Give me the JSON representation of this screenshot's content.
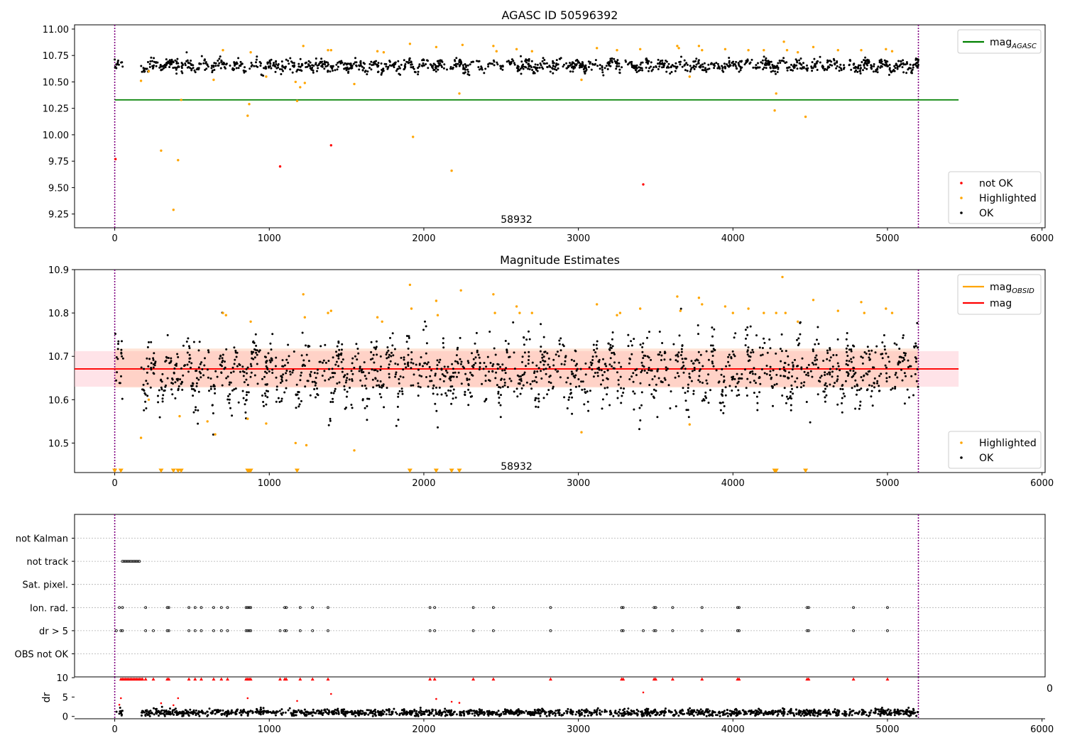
{
  "chart_data": [
    {
      "type": "scatter",
      "title": "AGASC ID 50596392",
      "xlabel": "",
      "ylabel": "",
      "xlim": [
        -260,
        6020
      ],
      "ylim": [
        9.12,
        11.04
      ],
      "xticks": [
        0,
        1000,
        2000,
        3000,
        4000,
        5000,
        6000
      ],
      "xtick_labels": [
        "0",
        "1000",
        "2000",
        "3000",
        "4000",
        "5000",
        "6000"
      ],
      "yticks": [
        9.25,
        9.5,
        9.75,
        10.0,
        10.25,
        10.5,
        10.75,
        11.0
      ],
      "ytick_labels": [
        "9.25",
        "9.50",
        "9.75",
        "10.00",
        "10.25",
        "10.50",
        "10.75",
        "11.00"
      ],
      "vlines": [
        0,
        5200
      ],
      "vline_color": "#800080",
      "annotation": {
        "text": "58932",
        "x": 2600,
        "y": 9.2
      },
      "hlines": [
        {
          "name": "mag_AGASC",
          "label_main": "mag",
          "label_sub": "AGASC",
          "y": 10.33,
          "x_range": [
            0,
            5460
          ],
          "color": "#008000"
        }
      ],
      "legend_lines": [
        {
          "label_main": "mag",
          "label_sub": "AGASC",
          "color": "#008000"
        }
      ],
      "legend_scatter": [
        {
          "label": "not OK",
          "color": "#ff0000"
        },
        {
          "label": "Highlighted",
          "color": "#ffa500"
        },
        {
          "label": "OK",
          "color": "#000000"
        }
      ],
      "series": [
        {
          "name": "OK",
          "color": "#000000",
          "generator": {
            "x_ranges": [
              [
                0,
                55
              ],
              [
                170,
                5200
              ]
            ],
            "count": 1300,
            "base": 10.655,
            "wave_amp": 0.025,
            "wave_period": 110,
            "noise": 0.028,
            "seed": 11
          },
          "x": [],
          "y": []
        },
        {
          "name": "Highlighted",
          "color": "#ffa500",
          "x": [
            170,
            220,
            300,
            380,
            410,
            430,
            640,
            700,
            860,
            870,
            880,
            980,
            1170,
            1180,
            1200,
            1220,
            1230,
            1380,
            1400,
            1550,
            1700,
            1740,
            1910,
            1930,
            2080,
            2180,
            2230,
            2250,
            2450,
            2470,
            2600,
            2700,
            3020,
            3120,
            3250,
            3400,
            3640,
            3650,
            3720,
            3780,
            3800,
            3950,
            4100,
            4200,
            4270,
            4280,
            4330,
            4350,
            4420,
            4470,
            4520,
            4680,
            4830,
            4990,
            5030
          ],
          "y": [
            10.51,
            10.6,
            9.85,
            9.29,
            9.76,
            10.33,
            10.52,
            10.8,
            10.18,
            10.29,
            10.78,
            10.55,
            10.5,
            10.32,
            10.45,
            10.84,
            10.49,
            10.8,
            10.8,
            10.48,
            10.79,
            10.78,
            10.86,
            9.98,
            10.83,
            9.66,
            10.39,
            10.85,
            10.84,
            10.79,
            10.81,
            10.79,
            10.52,
            10.82,
            10.8,
            10.81,
            10.84,
            10.82,
            10.55,
            10.84,
            10.8,
            10.81,
            10.8,
            10.8,
            10.23,
            10.39,
            10.88,
            10.8,
            10.78,
            10.17,
            10.83,
            10.8,
            10.8,
            10.81,
            10.79
          ]
        },
        {
          "name": "not OK",
          "color": "#ff0000",
          "x": [
            5,
            1070,
            1400,
            3420
          ],
          "y": [
            9.77,
            9.7,
            9.9,
            9.53
          ]
        }
      ]
    },
    {
      "type": "scatter",
      "title": "Magnitude Estimates",
      "xlabel": "",
      "ylabel": "",
      "xlim": [
        -260,
        6020
      ],
      "ylim": [
        10.432,
        10.9
      ],
      "xticks": [
        0,
        1000,
        2000,
        3000,
        4000,
        5000,
        6000
      ],
      "xtick_labels": [
        "0",
        "1000",
        "2000",
        "3000",
        "4000",
        "5000",
        "6000"
      ],
      "yticks": [
        10.5,
        10.6,
        10.7,
        10.8,
        10.9
      ],
      "ytick_labels": [
        "10.5",
        "10.6",
        "10.7",
        "10.8",
        "10.9"
      ],
      "vlines": [
        0,
        5200
      ],
      "vline_color": "#800080",
      "annotation": {
        "text": "58932",
        "x": 2600,
        "y": 10.447
      },
      "bands": [
        {
          "name": "mag band",
          "y_range": [
            10.63,
            10.712
          ],
          "x_range": [
            -260,
            5460
          ],
          "color": "#ffc0cb",
          "opacity": 0.45
        },
        {
          "name": "mag_OBSID band",
          "y_range": [
            10.628,
            10.718
          ],
          "x_range": [
            0,
            5200
          ],
          "color": "#ffb38a",
          "opacity": 0.35
        }
      ],
      "hlines": [
        {
          "name": "mag",
          "label_main": "mag",
          "label_sub": "",
          "y": 10.671,
          "x_range": [
            -260,
            5460
          ],
          "color": "#ff0000"
        }
      ],
      "legend_lines": [
        {
          "label_main": "mag",
          "label_sub": "OBSID",
          "color": "#ffa500"
        },
        {
          "label_main": "mag",
          "label_sub": "",
          "color": "#ff0000"
        }
      ],
      "legend_scatter": [
        {
          "label": "Highlighted",
          "color": "#ffa500"
        },
        {
          "label": "OK",
          "color": "#000000"
        }
      ],
      "series": [
        {
          "name": "OK",
          "color": "#000000",
          "generator": {
            "x_ranges": [
              [
                0,
                55
              ],
              [
                170,
                5200
              ]
            ],
            "count": 1600,
            "base": 10.664,
            "wave_amp": 0.035,
            "wave_period": 110,
            "noise": 0.035,
            "seed": 23
          },
          "x": [],
          "y": []
        },
        {
          "name": "Highlighted",
          "color": "#ffa500",
          "x": [
            170,
            220,
            420,
            600,
            650,
            700,
            720,
            860,
            880,
            980,
            1170,
            1220,
            1230,
            1240,
            1380,
            1400,
            1550,
            1700,
            1730,
            1910,
            1920,
            2080,
            2090,
            2240,
            2450,
            2460,
            2600,
            2620,
            2700,
            3020,
            3120,
            3250,
            3270,
            3400,
            3640,
            3660,
            3720,
            3780,
            3800,
            3950,
            4000,
            4100,
            4200,
            4280,
            4320,
            4340,
            4420,
            4520,
            4680,
            4830,
            4850,
            4990,
            5030
          ],
          "y": [
            10.512,
            10.6,
            10.562,
            10.55,
            10.52,
            10.8,
            10.795,
            10.556,
            10.78,
            10.545,
            10.5,
            10.843,
            10.79,
            10.495,
            10.8,
            10.805,
            10.483,
            10.79,
            10.78,
            10.865,
            10.81,
            10.828,
            10.795,
            10.852,
            10.843,
            10.8,
            10.815,
            10.8,
            10.8,
            10.525,
            10.82,
            10.795,
            10.8,
            10.81,
            10.838,
            10.805,
            10.543,
            10.835,
            10.82,
            10.815,
            10.8,
            10.81,
            10.8,
            10.8,
            10.883,
            10.8,
            10.78,
            10.83,
            10.805,
            10.825,
            10.8,
            10.81,
            10.8
          ]
        },
        {
          "name": "Highlighted (out of range)",
          "color": "#ffa500",
          "marker": "triangle-down",
          "x": [
            0,
            40,
            300,
            380,
            410,
            430,
            860,
            870,
            880,
            1180,
            1910,
            2080,
            2180,
            2230,
            4270,
            4280,
            4470
          ],
          "y": [
            10.436,
            10.436,
            10.436,
            10.436,
            10.436,
            10.436,
            10.436,
            10.436,
            10.436,
            10.436,
            10.436,
            10.436,
            10.436,
            10.436,
            10.436,
            10.436,
            10.436
          ]
        }
      ]
    },
    {
      "type": "scatter",
      "title": "",
      "xlim": [
        -260,
        6020
      ],
      "xticks": [
        0,
        1000,
        2000,
        3000,
        4000,
        5000,
        6000
      ],
      "xtick_labels": [
        "0",
        "1000",
        "2000",
        "3000",
        "4000",
        "5000",
        "6000"
      ],
      "vlines": [
        0,
        5200
      ],
      "vline_color": "#800080",
      "flags": {
        "categories": [
          "not Kalman",
          "not track",
          "Sat. pixel.",
          "Ion. rad.",
          "dr > 5",
          "OBS not OK"
        ],
        "points": {
          "not track": [
            50,
            60,
            70,
            80,
            90,
            100,
            110,
            120,
            130,
            140,
            150,
            160
          ],
          "Ion. rad.": [
            30,
            50,
            200,
            340,
            350,
            480,
            520,
            560,
            640,
            690,
            730,
            850,
            860,
            870,
            880,
            1100,
            1110,
            1200,
            1280,
            1380,
            2040,
            2070,
            2320,
            2450,
            2820,
            3280,
            3290,
            3490,
            3500,
            3610,
            3800,
            4030,
            4040,
            4480,
            4490,
            4780,
            5000
          ],
          "dr > 5": [
            10,
            40,
            50,
            200,
            250,
            340,
            350,
            480,
            520,
            560,
            640,
            690,
            730,
            850,
            860,
            870,
            880,
            1070,
            1100,
            1110,
            1200,
            1280,
            1380,
            2040,
            2070,
            2320,
            2450,
            2820,
            3280,
            3290,
            3420,
            3490,
            3500,
            3610,
            3800,
            4030,
            4040,
            4480,
            4490,
            4780,
            5000
          ]
        }
      },
      "dr": {
        "ylabel": "dr",
        "yticks": [
          0,
          5,
          10
        ],
        "ytick_labels": [
          "0",
          "5",
          "10"
        ],
        "ylim": [
          -0.6,
          10.2
        ],
        "clip_label": "0",
        "ok": {
          "generator": {
            "x_ranges": [
              [
                0,
                55
              ],
              [
                170,
                5200
              ]
            ],
            "count": 1500,
            "base": 1.0,
            "noise": 0.45,
            "seed": 37
          },
          "x": [],
          "y": []
        },
        "outliers": {
          "color": "#ff0000",
          "x": [
            30,
            40,
            300,
            380,
            410,
            860,
            1180,
            1400,
            2080,
            2180,
            2230,
            3420
          ],
          "y": [
            3.0,
            4.7,
            3.4,
            2.9,
            4.7,
            4.7,
            4.0,
            5.8,
            4.5,
            3.8,
            3.5,
            6.2
          ]
        },
        "clipped": {
          "color": "#ff0000",
          "y": 10,
          "x": [
            40,
            50,
            60,
            70,
            80,
            90,
            100,
            110,
            120,
            130,
            140,
            150,
            160,
            170,
            180,
            200,
            250,
            340,
            350,
            480,
            520,
            560,
            640,
            690,
            730,
            850,
            860,
            870,
            880,
            1070,
            1100,
            1110,
            1200,
            1280,
            1380,
            2040,
            2070,
            2320,
            2450,
            2820,
            3280,
            3290,
            3490,
            3500,
            3610,
            3800,
            4030,
            4040,
            4480,
            4490,
            4780,
            5000
          ]
        }
      }
    }
  ]
}
